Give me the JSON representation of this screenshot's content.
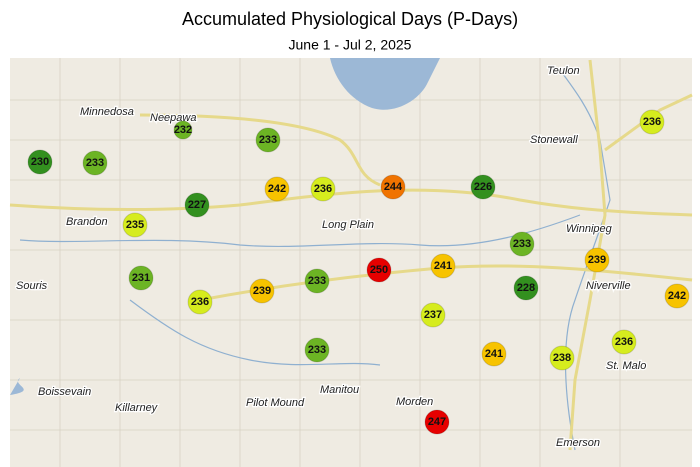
{
  "header": {
    "title": "Accumulated Physiological Days (P-Days)",
    "subtitle": "June 1 - Jul 2, 2025"
  },
  "stations": [
    {
      "value": 230,
      "color": "#33901f"
    },
    {
      "value": 233,
      "color": "#6cb424"
    },
    {
      "value": 232,
      "color": "#6cb424"
    },
    {
      "value": 233,
      "color": "#6cb424"
    },
    {
      "value": 242,
      "color": "#f7c300"
    },
    {
      "value": 236,
      "color": "#d6ec1e"
    },
    {
      "value": 244,
      "color": "#f07300"
    },
    {
      "value": 226,
      "color": "#33901f"
    },
    {
      "value": 236,
      "color": "#d6ec1e"
    },
    {
      "value": 235,
      "color": "#d6ec1e"
    },
    {
      "value": 227,
      "color": "#33901f"
    },
    {
      "value": 231,
      "color": "#6cb424"
    },
    {
      "value": 236,
      "color": "#d6ec1e"
    },
    {
      "value": 239,
      "color": "#f7c300"
    },
    {
      "value": 233,
      "color": "#6cb424"
    },
    {
      "value": 250,
      "color": "#e60000"
    },
    {
      "value": 241,
      "color": "#f7c300"
    },
    {
      "value": 233,
      "color": "#6cb424"
    },
    {
      "value": 239,
      "color": "#f7c300"
    },
    {
      "value": 228,
      "color": "#33901f"
    },
    {
      "value": 242,
      "color": "#f7c300"
    },
    {
      "value": 237,
      "color": "#d6ec1e"
    },
    {
      "value": 233,
      "color": "#6cb424"
    },
    {
      "value": 241,
      "color": "#f7c300"
    },
    {
      "value": 238,
      "color": "#d6ec1e"
    },
    {
      "value": 236,
      "color": "#d6ec1e"
    },
    {
      "value": 247,
      "color": "#e60000"
    }
  ],
  "towns": [
    "Teulon",
    "Minnedosa",
    "Neepawa",
    "Stonewall",
    "Winnipeg",
    "Brandon",
    "Long Plain",
    "Souris",
    "Niverville",
    "St. Malo",
    "Boissevain",
    "Killarney",
    "Pilot Mound",
    "Manitou",
    "Morden",
    "Emerson"
  ]
}
